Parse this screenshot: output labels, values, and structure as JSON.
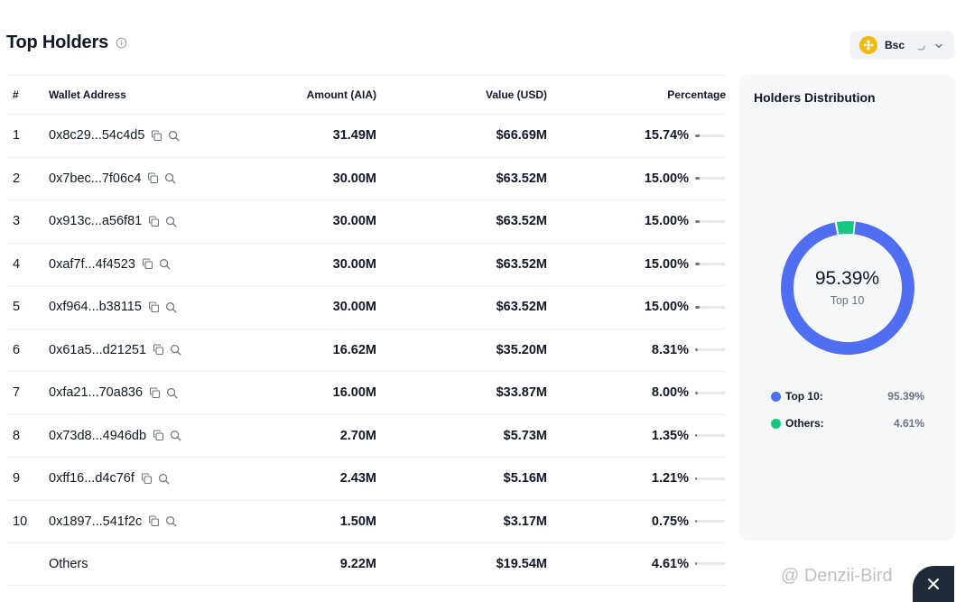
{
  "header": {
    "title": "Top Holders"
  },
  "chain": {
    "label": "Bsc",
    "color": "#f0b90b"
  },
  "table": {
    "columns": {
      "rank": "#",
      "wallet": "Wallet Address",
      "amount": "Amount (AIA)",
      "value": "Value (USD)",
      "percentage": "Percentage"
    },
    "rows": [
      {
        "rank": "1",
        "wallet": "0x8c29...54c4d5",
        "amount": "31.49M",
        "value": "$66.69M",
        "percentage": "15.74%",
        "pct": 15.74
      },
      {
        "rank": "2",
        "wallet": "0x7bec...7f06c4",
        "amount": "30.00M",
        "value": "$63.52M",
        "percentage": "15.00%",
        "pct": 15.0
      },
      {
        "rank": "3",
        "wallet": "0x913c...a56f81",
        "amount": "30.00M",
        "value": "$63.52M",
        "percentage": "15.00%",
        "pct": 15.0
      },
      {
        "rank": "4",
        "wallet": "0xaf7f...4f4523",
        "amount": "30.00M",
        "value": "$63.52M",
        "percentage": "15.00%",
        "pct": 15.0
      },
      {
        "rank": "5",
        "wallet": "0xf964...b38115",
        "amount": "30.00M",
        "value": "$63.52M",
        "percentage": "15.00%",
        "pct": 15.0
      },
      {
        "rank": "6",
        "wallet": "0x61a5...d21251",
        "amount": "16.62M",
        "value": "$35.20M",
        "percentage": "8.31%",
        "pct": 8.31
      },
      {
        "rank": "7",
        "wallet": "0xfa21...70a836",
        "amount": "16.00M",
        "value": "$33.87M",
        "percentage": "8.00%",
        "pct": 8.0
      },
      {
        "rank": "8",
        "wallet": "0x73d8...4946db",
        "amount": "2.70M",
        "value": "$5.73M",
        "percentage": "1.35%",
        "pct": 1.35
      },
      {
        "rank": "9",
        "wallet": "0xff16...d4c76f",
        "amount": "2.43M",
        "value": "$5.16M",
        "percentage": "1.21%",
        "pct": 1.21
      },
      {
        "rank": "10",
        "wallet": "0x1897...541f2c",
        "amount": "1.50M",
        "value": "$3.17M",
        "percentage": "0.75%",
        "pct": 0.75
      }
    ],
    "others": {
      "rank": "",
      "wallet": "Others",
      "amount": "9.22M",
      "value": "$19.54M",
      "percentage": "4.61%",
      "pct": 4.61
    }
  },
  "distribution": {
    "title": "Holders Distribution",
    "center_value": "95.39%",
    "center_label": "Top 10",
    "segments": [
      {
        "name": "Top 10:",
        "value": "95.39%",
        "pct": 95.39,
        "color": "#4f6ef2"
      },
      {
        "name": "Others:",
        "value": "4.61%",
        "pct": 4.61,
        "color": "#16c784"
      }
    ]
  },
  "watermark": {
    "text": "@ Denzii-Bird"
  }
}
